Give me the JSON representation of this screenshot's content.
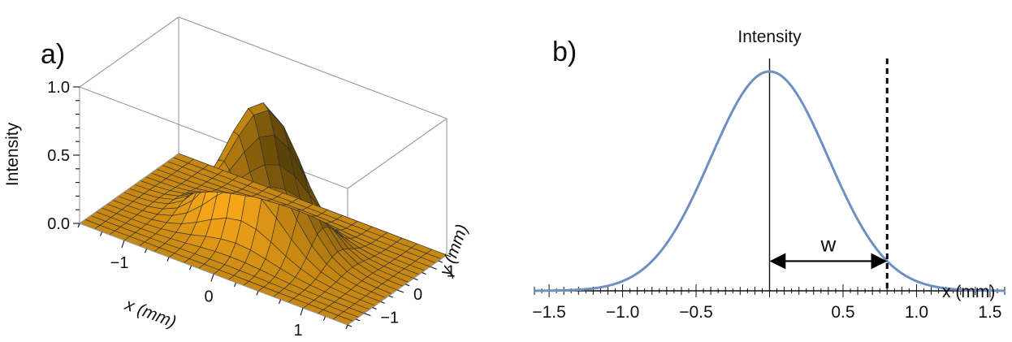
{
  "panels": {
    "a": {
      "label": "a)"
    },
    "b": {
      "label": "b)"
    }
  },
  "chart_data": [
    {
      "type": "surface",
      "title": "",
      "function": "exp(-(x^2+y^2)/0.32)",
      "xlabel": "x (mm)",
      "ylabel": "y (mm)",
      "zlabel": "Intensity",
      "xlim": [
        -1.5,
        1.5
      ],
      "ylim": [
        -1.5,
        1.5
      ],
      "zlim": [
        0,
        1.0
      ],
      "x_ticks": [
        "-1",
        "0",
        "1"
      ],
      "y_ticks": [
        "-1",
        "0",
        "1"
      ],
      "z_ticks": [
        "0.0",
        "0.5",
        "1.0"
      ],
      "mesh_lines": 19,
      "surface_color": "#f5a31a",
      "grid": false
    },
    {
      "type": "line",
      "title": "",
      "xlabel": "x (mm)",
      "ylabel": "Intensity",
      "xlim": [
        -1.6,
        1.6
      ],
      "ylim": [
        0,
        1.0
      ],
      "x_ticks": [
        "-1.5",
        "-1.0",
        "-0.5",
        "0.5",
        "1.0",
        "1.5"
      ],
      "series": [
        {
          "x": [
            -1.6,
            -1.4,
            -1.2,
            -1.0,
            -0.9,
            -0.8,
            -0.7,
            -0.6,
            -0.5,
            -0.4,
            -0.3,
            -0.2,
            -0.1,
            0.0,
            0.1,
            0.2,
            0.3,
            0.4,
            0.5,
            0.6,
            0.7,
            0.8,
            0.9,
            1.0,
            1.2,
            1.4,
            1.6
          ],
          "y": [
            0.0003,
            0.0022,
            0.0111,
            0.0439,
            0.0796,
            0.1353,
            0.2163,
            0.3247,
            0.4578,
            0.6065,
            0.7548,
            0.8825,
            0.9692,
            1.0,
            0.9692,
            0.8825,
            0.7548,
            0.6065,
            0.4578,
            0.3247,
            0.2163,
            0.1353,
            0.0796,
            0.0439,
            0.0111,
            0.0022,
            0.0003
          ],
          "color": "#6f8fc2"
        }
      ],
      "annotations": {
        "width_label": "w",
        "dashed_line_x": 0.8
      },
      "grid": false
    }
  ]
}
